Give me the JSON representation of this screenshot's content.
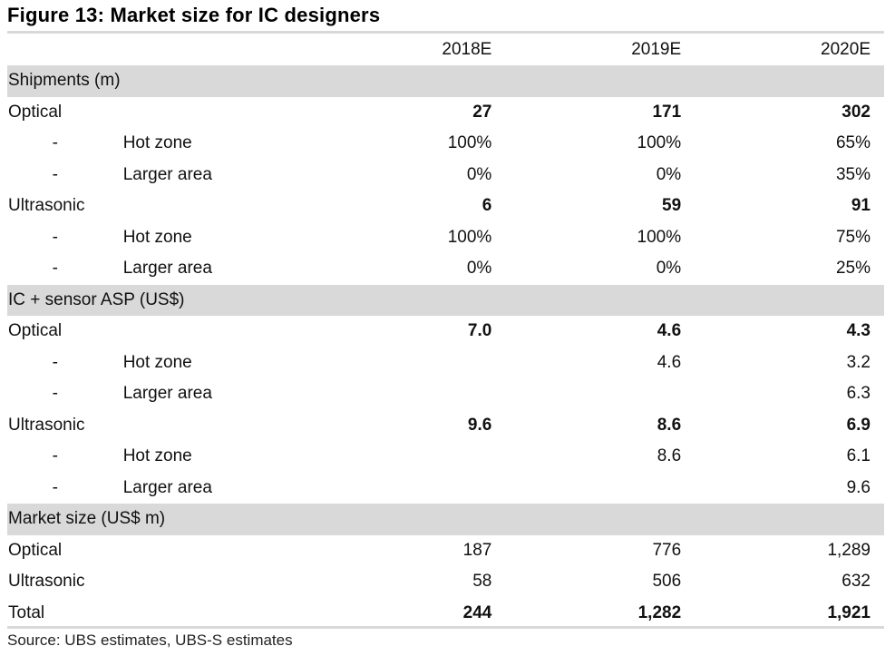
{
  "figure": {
    "title": "Figure 13: Market size for IC designers",
    "source": "Source:  UBS estimates, UBS-S estimates"
  },
  "columns": [
    "2018E",
    "2019E",
    "2020E"
  ],
  "rows": [
    {
      "kind": "section",
      "label": "Shipments (m)"
    },
    {
      "kind": "bold",
      "label": "Optical",
      "values": [
        "27",
        "171",
        "302"
      ]
    },
    {
      "kind": "sub",
      "dash": "-",
      "label": "Hot zone",
      "values": [
        "100%",
        "100%",
        "65%"
      ]
    },
    {
      "kind": "sub",
      "dash": "-",
      "label": "Larger area",
      "values": [
        "0%",
        "0%",
        "35%"
      ]
    },
    {
      "kind": "bold",
      "label": "Ultrasonic",
      "values": [
        "6",
        "59",
        "91"
      ]
    },
    {
      "kind": "sub",
      "dash": "-",
      "label": "Hot zone",
      "values": [
        "100%",
        "100%",
        "75%"
      ]
    },
    {
      "kind": "sub",
      "dash": "-",
      "label": "Larger area",
      "values": [
        "0%",
        "0%",
        "25%"
      ]
    },
    {
      "kind": "section",
      "label": "IC + sensor ASP (US$)"
    },
    {
      "kind": "bold",
      "label": "Optical",
      "values": [
        "7.0",
        "4.6",
        "4.3"
      ]
    },
    {
      "kind": "sub",
      "dash": "-",
      "label": "Hot zone",
      "values": [
        "",
        "4.6",
        "3.2"
      ]
    },
    {
      "kind": "sub",
      "dash": "-",
      "label": "Larger area",
      "values": [
        "",
        "",
        "6.3"
      ]
    },
    {
      "kind": "bold",
      "label": "Ultrasonic",
      "values": [
        "9.6",
        "8.6",
        "6.9"
      ]
    },
    {
      "kind": "sub",
      "dash": "-",
      "label": "Hot zone",
      "values": [
        "",
        "8.6",
        "6.1"
      ]
    },
    {
      "kind": "sub",
      "dash": "-",
      "label": "Larger area",
      "values": [
        "",
        "",
        "9.6"
      ]
    },
    {
      "kind": "section",
      "label": "Market size (US$ m)"
    },
    {
      "kind": "plain",
      "label": "Optical",
      "values": [
        "187",
        "776",
        "1,289"
      ]
    },
    {
      "kind": "plain",
      "label": "Ultrasonic",
      "values": [
        "58",
        "506",
        "632"
      ]
    },
    {
      "kind": "total",
      "label": "Total",
      "values": [
        "244",
        "1,282",
        "1,921"
      ]
    }
  ],
  "colors": {
    "section_band": "#d9d9d9",
    "rule": "#d9d9d9",
    "text": "#111111"
  }
}
